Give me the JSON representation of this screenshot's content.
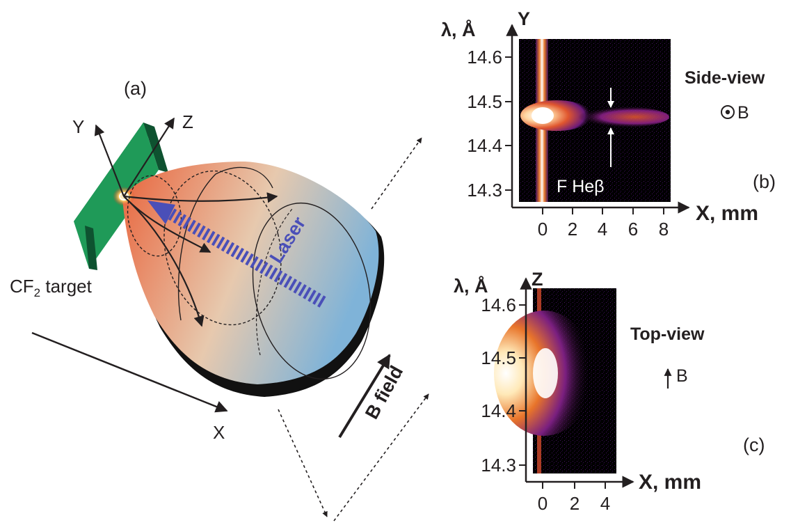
{
  "panel_a": {
    "label": "(a)",
    "axis_y": "Y",
    "axis_z": "Z",
    "axis_x": "X",
    "target_label": "CF",
    "target_sub": "2",
    "target_suffix": " target",
    "laser_label": "Laser",
    "bfield_label": "B field",
    "colors": {
      "plume_hot": "#e8643c",
      "plume_mid": "#e7c9ae",
      "plume_cool": "#7fb3d8",
      "target": "#1f9a58",
      "laser": "#4a4fb8"
    }
  },
  "panel_b": {
    "label": "(b)",
    "ylabel": "λ, Å",
    "axis_y": "Y",
    "xlabel": "X, mm",
    "view_title": "Side-view",
    "b_symbol": "B",
    "line_label": "F Heβ",
    "y_ticks": [
      "14.6",
      "14.5",
      "14.4",
      "14.3"
    ],
    "x_ticks": [
      "0",
      "2",
      "4",
      "6",
      "8"
    ]
  },
  "panel_c": {
    "label": "(c)",
    "ylabel": "λ, Å",
    "axis_z": "Z",
    "xlabel": "X, mm",
    "view_title": "Top-view",
    "b_symbol": "B",
    "y_ticks": [
      "14.6",
      "14.5",
      "14.4",
      "14.3"
    ],
    "x_ticks": [
      "0",
      "2",
      "4"
    ]
  }
}
